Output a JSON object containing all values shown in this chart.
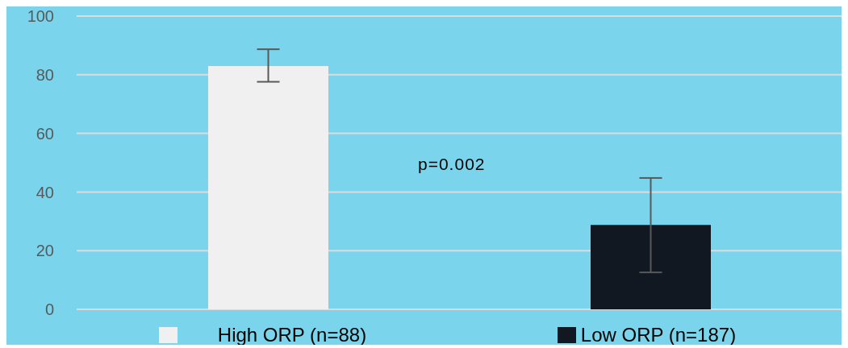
{
  "chart_data": {
    "type": "bar",
    "categories": [
      "High ORP (n=88)",
      "Low ORP (n=187)"
    ],
    "values": [
      83,
      28.8
    ],
    "colors": [
      "#f0f0f0",
      "#121821"
    ],
    "errors": [
      [
        77.6,
        88.7
      ],
      [
        12.6,
        44.8
      ]
    ],
    "ylim": [
      0,
      100
    ],
    "yticks": [
      0,
      20,
      40,
      60,
      80,
      100
    ],
    "grid": "y",
    "annotations": [
      "p=0.002"
    ]
  }
}
